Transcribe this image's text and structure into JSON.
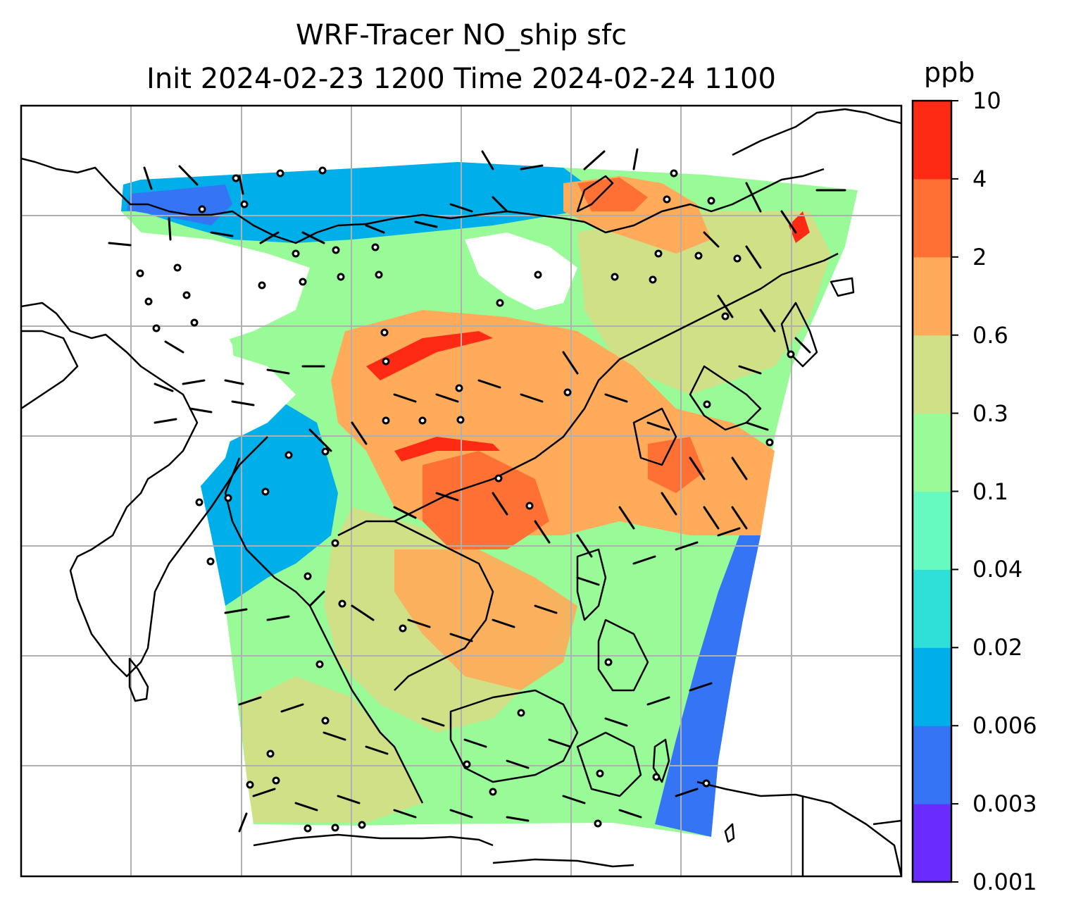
{
  "title": {
    "line1": "WRF-Tracer NO_ship sfc",
    "line2": "Init 2024-02-23 1200 Time 2024-02-24 1100"
  },
  "colorbar": {
    "units": "ppb",
    "levels": [
      "0.001",
      "0.003",
      "0.006",
      "0.02",
      "0.04",
      "0.1",
      "0.3",
      "0.6",
      "2",
      "4",
      "10"
    ],
    "colors": [
      "#6a2bff",
      "#3474f5",
      "#00aeea",
      "#2ee0d8",
      "#66f9c0",
      "#98fb98",
      "#cfe087",
      "#ffab5a",
      "#ff7034",
      "#ff2a14"
    ]
  },
  "map": {
    "field_colors": {
      "low": "#3474f5",
      "cyan": "#00aeea",
      "aqua": "#66f9c0",
      "green": "#98fb98",
      "olive": "#cfe087",
      "orange": "#ffab5a",
      "dark_orange": "#ff7034",
      "red": "#ff2a14",
      "purple": "#6a2bff"
    },
    "gridline_color": "#b0b0b0",
    "coastline_color": "#000000"
  }
}
